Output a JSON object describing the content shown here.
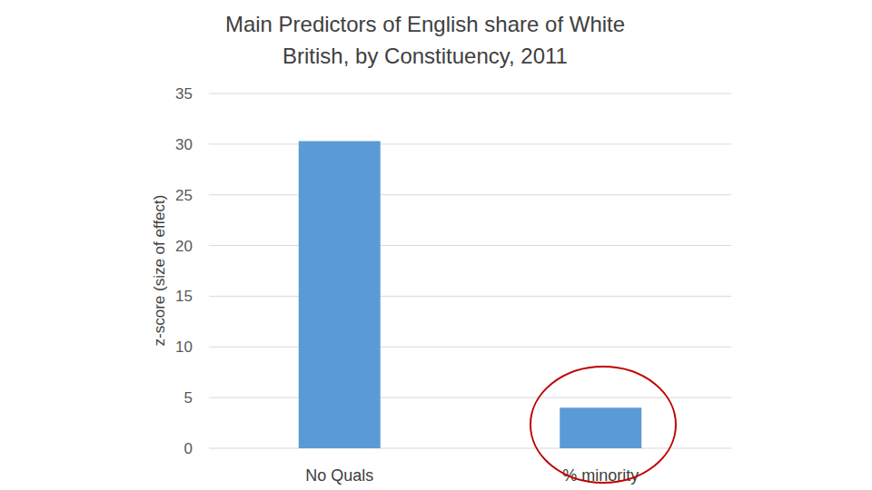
{
  "chart_data": {
    "type": "bar",
    "title": "Main Predictors of English share of White British, by Constituency, 2011",
    "y_label": "z-score (size of effect)",
    "categories": [
      "No Quals",
      "% minority"
    ],
    "values": [
      30.3,
      4.0
    ],
    "color": "#5b9bd5",
    "ylim": [
      0,
      35
    ],
    "yticks": [
      0,
      5,
      10,
      15,
      20,
      25,
      30,
      35
    ],
    "grid": true
  }
}
